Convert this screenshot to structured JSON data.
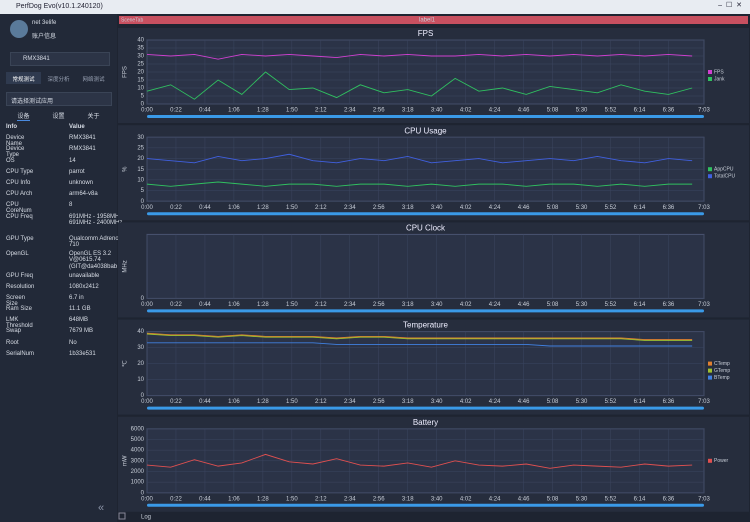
{
  "window_title": "PerfDog Evo(v10.1.240120)",
  "user": {
    "name": "net 3elife",
    "account": "账户信息"
  },
  "device": "RMX3841",
  "tabs": [
    "常规测试",
    "深度分析",
    "网络测试"
  ],
  "app_select": "请选择测试应用",
  "subtabs": [
    "设备",
    "设置",
    "关于"
  ],
  "info_table": {
    "header": [
      "Info",
      "Value"
    ],
    "rows": [
      [
        "Device Name",
        "RMX3841"
      ],
      [
        "Device Type",
        "RMX3841"
      ],
      [
        "OS",
        "14"
      ],
      [
        "CPU Type",
        "parrot"
      ],
      [
        "CPU Info",
        "unknown"
      ],
      [
        "CPU Arch",
        "arm64-v8a"
      ],
      [
        "CPU CoreNum",
        "8"
      ],
      [
        "CPU Freq",
        "691MHz - 1958MHz 691MHz - 2400MHz"
      ],
      [
        "GPU Type",
        "Qualcomm Adreno (TM) 710"
      ],
      [
        "OpenGL",
        "OpenGL ES 3.2 V@0615.74 (GIT@da4038bab"
      ],
      [
        "GPU Freq",
        "unavailable"
      ],
      [
        "Resolution",
        "1080x2412"
      ],
      [
        "Screen Size",
        "6.7 in"
      ],
      [
        "Ram Size",
        "11.1 GB"
      ],
      [
        "LMK Threshold",
        "648MB"
      ],
      [
        "Swap",
        "7679 MB"
      ],
      [
        "Root",
        "No"
      ],
      [
        "SerialNum",
        "1b33e531"
      ]
    ]
  },
  "scene_tab": "SceneTab",
  "scene_label": "label1",
  "footer": "Log",
  "chart_data": [
    {
      "type": "line",
      "title": "FPS",
      "ylabel": "FPS",
      "ylim": [
        0,
        40
      ],
      "yticks": [
        0,
        5,
        10,
        15,
        20,
        25,
        30,
        35,
        40
      ],
      "xlim": [
        0,
        423
      ],
      "xticks": [
        {
          "value": 0,
          "label": "0:00"
        },
        {
          "value": 22,
          "label": "0:22"
        },
        {
          "value": 44,
          "label": "0:44"
        },
        {
          "value": 66,
          "label": "1:06"
        },
        {
          "value": 88,
          "label": "1:28"
        },
        {
          "value": 110,
          "label": "1:50"
        },
        {
          "value": 132,
          "label": "2:12"
        },
        {
          "value": 154,
          "label": "2:34"
        },
        {
          "value": 176,
          "label": "2:56"
        },
        {
          "value": 198,
          "label": "3:18"
        },
        {
          "value": 220,
          "label": "3:40"
        },
        {
          "value": 242,
          "label": "4:02"
        },
        {
          "value": 264,
          "label": "4:24"
        },
        {
          "value": 286,
          "label": "4:46"
        },
        {
          "value": 308,
          "label": "5:08"
        },
        {
          "value": 330,
          "label": "5:30"
        },
        {
          "value": 352,
          "label": "5:52"
        },
        {
          "value": 374,
          "label": "6:14"
        },
        {
          "value": 396,
          "label": "6:36"
        },
        {
          "value": 423,
          "label": "7:03"
        }
      ],
      "x": [
        0,
        18,
        36,
        54,
        72,
        90,
        108,
        126,
        144,
        162,
        180,
        198,
        216,
        234,
        252,
        270,
        288,
        306,
        324,
        342,
        360,
        378,
        396,
        414
      ],
      "series": [
        {
          "name": "FPS",
          "color": "#d040d0",
          "values": [
            31,
            30,
            31,
            28,
            31,
            30,
            31,
            30,
            29,
            31,
            30,
            31,
            30,
            30,
            31,
            30,
            31,
            30,
            31,
            30,
            31,
            30,
            31,
            30
          ]
        },
        {
          "name": "Jank",
          "color": "#30c060",
          "values": [
            8,
            12,
            3,
            15,
            6,
            20,
            9,
            10,
            4,
            12,
            7,
            9,
            5,
            16,
            8,
            10,
            6,
            11,
            9,
            7,
            12,
            8,
            6,
            10
          ]
        }
      ]
    },
    {
      "type": "line",
      "title": "CPU Usage",
      "ylabel": "%",
      "ylim": [
        0,
        30
      ],
      "yticks": [
        0,
        5,
        10,
        15,
        20,
        25,
        30
      ],
      "xlim": [
        0,
        423
      ],
      "xticks": [
        {
          "value": 0,
          "label": "0:00"
        },
        {
          "value": 22,
          "label": "0:22"
        },
        {
          "value": 44,
          "label": "0:44"
        },
        {
          "value": 66,
          "label": "1:06"
        },
        {
          "value": 88,
          "label": "1:28"
        },
        {
          "value": 110,
          "label": "1:50"
        },
        {
          "value": 132,
          "label": "2:12"
        },
        {
          "value": 154,
          "label": "2:34"
        },
        {
          "value": 176,
          "label": "2:56"
        },
        {
          "value": 198,
          "label": "3:18"
        },
        {
          "value": 220,
          "label": "3:40"
        },
        {
          "value": 242,
          "label": "4:02"
        },
        {
          "value": 264,
          "label": "4:24"
        },
        {
          "value": 286,
          "label": "4:46"
        },
        {
          "value": 308,
          "label": "5:08"
        },
        {
          "value": 330,
          "label": "5:30"
        },
        {
          "value": 352,
          "label": "5:52"
        },
        {
          "value": 374,
          "label": "6:14"
        },
        {
          "value": 396,
          "label": "6:36"
        },
        {
          "value": 423,
          "label": "7:03"
        }
      ],
      "x": [
        0,
        18,
        36,
        54,
        72,
        90,
        108,
        126,
        144,
        162,
        180,
        198,
        216,
        234,
        252,
        270,
        288,
        306,
        324,
        342,
        360,
        378,
        396,
        414
      ],
      "series": [
        {
          "name": "AppCPU",
          "color": "#30c060",
          "values": [
            8,
            7,
            8,
            9,
            8,
            7,
            8,
            8,
            7,
            8,
            8,
            7,
            8,
            7,
            8,
            8,
            7,
            8,
            8,
            7,
            8,
            7,
            8,
            8
          ]
        },
        {
          "name": "TotalCPU",
          "color": "#4060e0",
          "values": [
            20,
            19,
            18,
            21,
            19,
            20,
            22,
            19,
            18,
            20,
            19,
            21,
            18,
            19,
            20,
            18,
            19,
            20,
            19,
            21,
            19,
            18,
            20,
            19
          ]
        }
      ]
    },
    {
      "type": "line",
      "title": "CPU Clock",
      "ylabel": "MHz",
      "ylim": [
        0,
        1
      ],
      "yticks": [
        0
      ],
      "xlim": [
        0,
        423
      ],
      "xticks": [
        {
          "value": 0,
          "label": "0:00"
        },
        {
          "value": 22,
          "label": "0:22"
        },
        {
          "value": 44,
          "label": "0:44"
        },
        {
          "value": 66,
          "label": "1:06"
        },
        {
          "value": 88,
          "label": "1:28"
        },
        {
          "value": 110,
          "label": "1:50"
        },
        {
          "value": 132,
          "label": "2:12"
        },
        {
          "value": 154,
          "label": "2:34"
        },
        {
          "value": 176,
          "label": "2:56"
        },
        {
          "value": 198,
          "label": "3:18"
        },
        {
          "value": 220,
          "label": "3:40"
        },
        {
          "value": 242,
          "label": "4:02"
        },
        {
          "value": 264,
          "label": "4:24"
        },
        {
          "value": 286,
          "label": "4:46"
        },
        {
          "value": 308,
          "label": "5:08"
        },
        {
          "value": 330,
          "label": "5:30"
        },
        {
          "value": 352,
          "label": "5:52"
        },
        {
          "value": 374,
          "label": "6:14"
        },
        {
          "value": 396,
          "label": "6:36"
        },
        {
          "value": 423,
          "label": "7:03"
        }
      ],
      "series": []
    },
    {
      "type": "line",
      "title": "Temperature",
      "ylabel": "℃",
      "ylim": [
        0,
        40
      ],
      "yticks": [
        0,
        10,
        20,
        30,
        40
      ],
      "xlim": [
        0,
        423
      ],
      "xticks": [
        {
          "value": 0,
          "label": "0:00"
        },
        {
          "value": 22,
          "label": "0:22"
        },
        {
          "value": 44,
          "label": "0:44"
        },
        {
          "value": 66,
          "label": "1:06"
        },
        {
          "value": 88,
          "label": "1:28"
        },
        {
          "value": 110,
          "label": "1:50"
        },
        {
          "value": 132,
          "label": "2:12"
        },
        {
          "value": 154,
          "label": "2:34"
        },
        {
          "value": 176,
          "label": "2:56"
        },
        {
          "value": 198,
          "label": "3:18"
        },
        {
          "value": 220,
          "label": "3:40"
        },
        {
          "value": 242,
          "label": "4:02"
        },
        {
          "value": 264,
          "label": "4:24"
        },
        {
          "value": 286,
          "label": "4:46"
        },
        {
          "value": 308,
          "label": "5:08"
        },
        {
          "value": 330,
          "label": "5:30"
        },
        {
          "value": 352,
          "label": "5:52"
        },
        {
          "value": 374,
          "label": "6:14"
        },
        {
          "value": 396,
          "label": "6:36"
        },
        {
          "value": 423,
          "label": "7:03"
        }
      ],
      "x": [
        0,
        18,
        36,
        54,
        72,
        90,
        108,
        126,
        144,
        162,
        180,
        198,
        216,
        234,
        252,
        270,
        288,
        306,
        324,
        342,
        360,
        378,
        396,
        414
      ],
      "series": [
        {
          "name": "CTemp",
          "color": "#e08030",
          "values": [
            39,
            38,
            38,
            37,
            38,
            37,
            37,
            37,
            36,
            37,
            37,
            36,
            36,
            36,
            36,
            36,
            36,
            36,
            36,
            36,
            36,
            35,
            35,
            35
          ]
        },
        {
          "name": "GTemp",
          "color": "#a0c030",
          "values": [
            38.5,
            37.5,
            37.5,
            36.5,
            37.5,
            36.5,
            36.5,
            36.5,
            35.5,
            36.5,
            36.5,
            35.5,
            35.5,
            35.5,
            35.5,
            35.5,
            35.5,
            35.5,
            35.5,
            35.5,
            35.5,
            34.5,
            34.5,
            34.5
          ]
        },
        {
          "name": "BTemp",
          "color": "#4080e0",
          "values": [
            33,
            33,
            33,
            33,
            33,
            33,
            33,
            33,
            32,
            32,
            32,
            32,
            32,
            32,
            32,
            32,
            32,
            31,
            31,
            31,
            31,
            31,
            31,
            31
          ]
        }
      ]
    },
    {
      "type": "line",
      "title": "Battery",
      "ylabel": "mW",
      "ylim": [
        0,
        6000
      ],
      "yticks": [
        0,
        1000,
        2000,
        3000,
        4000,
        5000,
        6000
      ],
      "xlim": [
        0,
        423
      ],
      "xticks": [
        {
          "value": 0,
          "label": "0:00"
        },
        {
          "value": 22,
          "label": "0:22"
        },
        {
          "value": 44,
          "label": "0:44"
        },
        {
          "value": 66,
          "label": "1:06"
        },
        {
          "value": 88,
          "label": "1:28"
        },
        {
          "value": 110,
          "label": "1:50"
        },
        {
          "value": 132,
          "label": "2:12"
        },
        {
          "value": 154,
          "label": "2:34"
        },
        {
          "value": 176,
          "label": "2:56"
        },
        {
          "value": 198,
          "label": "3:18"
        },
        {
          "value": 220,
          "label": "3:40"
        },
        {
          "value": 242,
          "label": "4:02"
        },
        {
          "value": 264,
          "label": "4:24"
        },
        {
          "value": 286,
          "label": "4:46"
        },
        {
          "value": 308,
          "label": "5:08"
        },
        {
          "value": 330,
          "label": "5:30"
        },
        {
          "value": 352,
          "label": "5:52"
        },
        {
          "value": 374,
          "label": "6:14"
        },
        {
          "value": 396,
          "label": "6:36"
        },
        {
          "value": 423,
          "label": "7:03"
        }
      ],
      "x": [
        0,
        18,
        36,
        54,
        72,
        90,
        108,
        126,
        144,
        162,
        180,
        198,
        216,
        234,
        252,
        270,
        288,
        306,
        324,
        342,
        360,
        378,
        396,
        414
      ],
      "series": [
        {
          "name": "Power",
          "color": "#e05050",
          "values": [
            2600,
            2400,
            3100,
            2500,
            2800,
            3600,
            2900,
            2700,
            3200,
            2600,
            2500,
            2800,
            2400,
            3000,
            2600,
            2500,
            2700,
            2300,
            2600,
            2500,
            2400,
            2700,
            2500,
            2600
          ]
        }
      ]
    }
  ]
}
